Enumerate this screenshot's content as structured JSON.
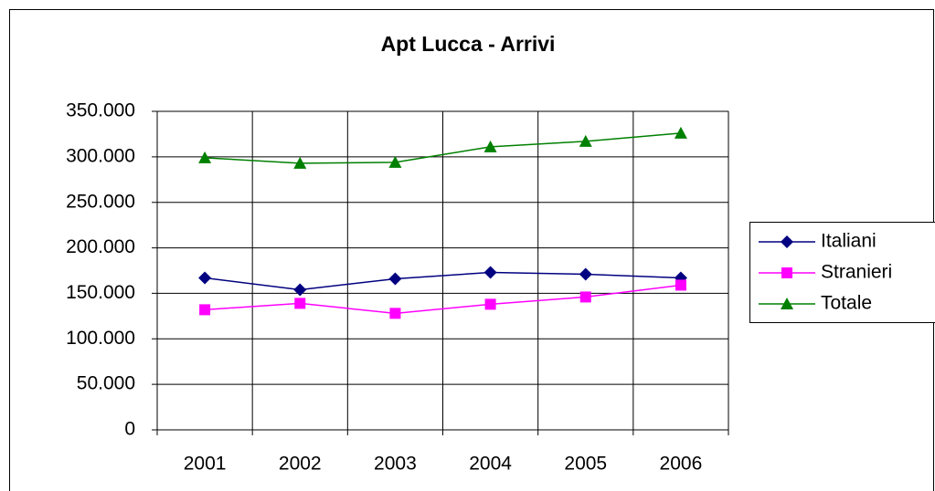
{
  "chart_data": {
    "type": "line",
    "title": "Apt Lucca - Arrivi",
    "categories": [
      "2001",
      "2002",
      "2003",
      "2004",
      "2005",
      "2006"
    ],
    "series": [
      {
        "name": "Italiani",
        "color": "#000080",
        "marker": "diamond",
        "values": [
          167000,
          154000,
          166000,
          173000,
          171000,
          167000
        ]
      },
      {
        "name": "Stranieri",
        "color": "#ff00ff",
        "marker": "square",
        "values": [
          132000,
          139000,
          128000,
          138000,
          146000,
          159000
        ]
      },
      {
        "name": "Totale",
        "color": "#008000",
        "marker": "triangle",
        "values": [
          299000,
          293000,
          294000,
          311000,
          317000,
          326000
        ]
      }
    ],
    "ylim": [
      0,
      350000
    ],
    "yticks": [
      0,
      {
        "value": 50000,
        "label": "50.000"
      },
      {
        "value": 100000,
        "label": "100.000"
      },
      {
        "value": 150000,
        "label": "150.000"
      },
      {
        "value": 200000,
        "label": "200.000"
      },
      {
        "value": 250000,
        "label": "250.000"
      },
      {
        "value": 300000,
        "label": "300.000"
      },
      {
        "value": 350000,
        "label": "350.000"
      }
    ],
    "grid": true,
    "legend": "right"
  }
}
